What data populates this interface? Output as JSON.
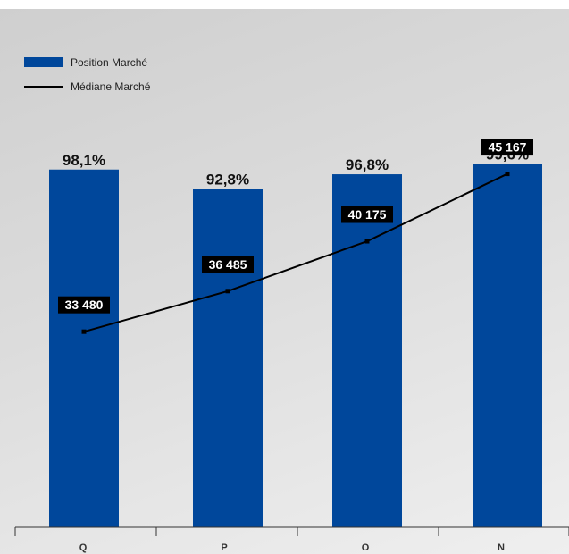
{
  "colors": {
    "bar": "#00479b",
    "line": "#000000",
    "label_bg": "#000000",
    "label_text": "#ffffff"
  },
  "legend": {
    "bar_label": "Position Marché",
    "line_label": "Médiane Marché"
  },
  "chart_data": {
    "type": "bar",
    "categories": [
      "Q",
      "P",
      "O",
      "N"
    ],
    "series": [
      {
        "name": "Position Marché",
        "type": "bar",
        "values": [
          98.1,
          92.8,
          96.8,
          99.6
        ],
        "labels": [
          "98,1%",
          "92,8%",
          "96,8%",
          "99,6%"
        ]
      },
      {
        "name": "Médiane Marché",
        "type": "line",
        "values": [
          33480,
          36485,
          40175,
          45167
        ],
        "labels": [
          "33 480",
          "36 485",
          "40 175",
          "45 167"
        ]
      }
    ],
    "bar_axis_range": [
      0,
      100
    ],
    "line_axis_range": [
      19000,
      46000
    ],
    "legend_position": "top-left",
    "grid": false
  }
}
